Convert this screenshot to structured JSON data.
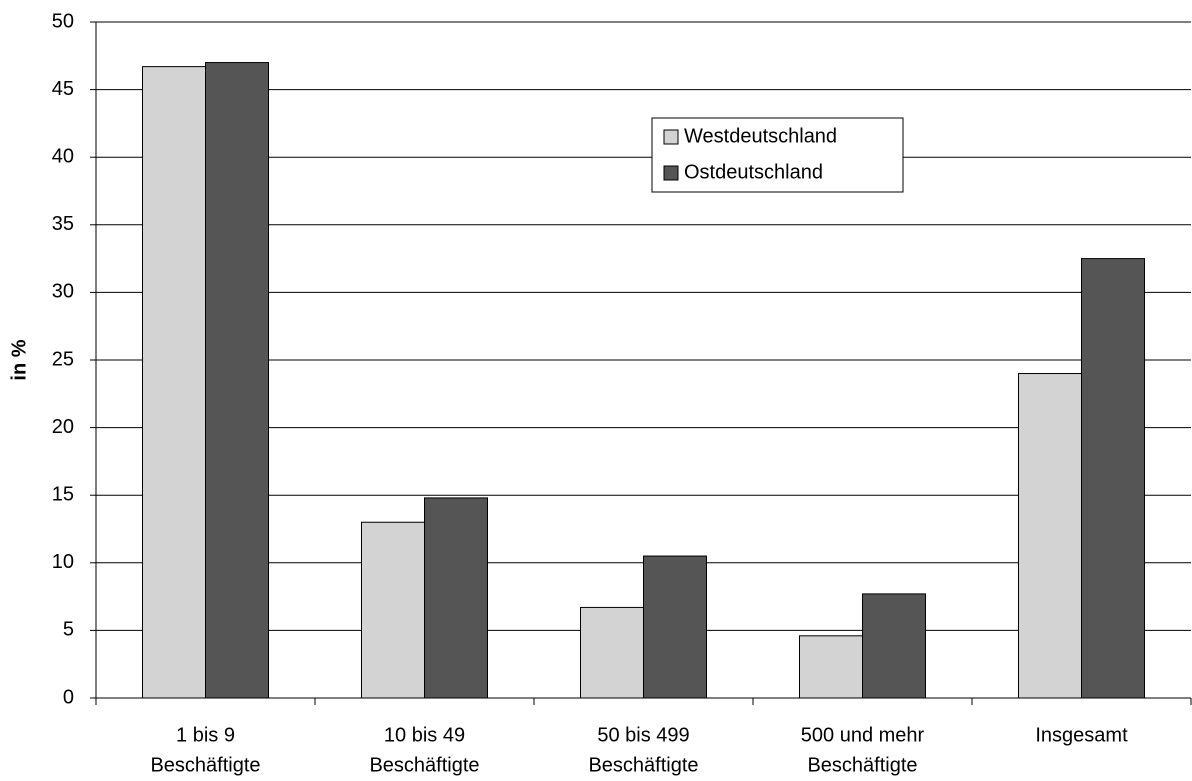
{
  "chart_data": {
    "type": "bar",
    "y_label": "in %",
    "categories": [
      [
        "1 bis 9",
        "Beschäftigte"
      ],
      [
        "10 bis 49",
        "Beschäftigte"
      ],
      [
        "50 bis 499",
        "Beschäftigte"
      ],
      [
        "500 und mehr",
        "Beschäftigte"
      ],
      [
        "Insgesamt"
      ]
    ],
    "series": [
      {
        "name": "Westdeutschland",
        "color": "#d3d3d3",
        "values": [
          46.7,
          13.0,
          6.7,
          4.6,
          24.0
        ]
      },
      {
        "name": "Ostdeutschland",
        "color": "#555555",
        "values": [
          47.0,
          14.8,
          10.5,
          7.7,
          32.5
        ]
      }
    ],
    "ylim": [
      0,
      50
    ],
    "yticks": [
      0,
      5,
      10,
      15,
      20,
      25,
      30,
      35,
      40,
      45,
      50
    ],
    "grid": true
  }
}
